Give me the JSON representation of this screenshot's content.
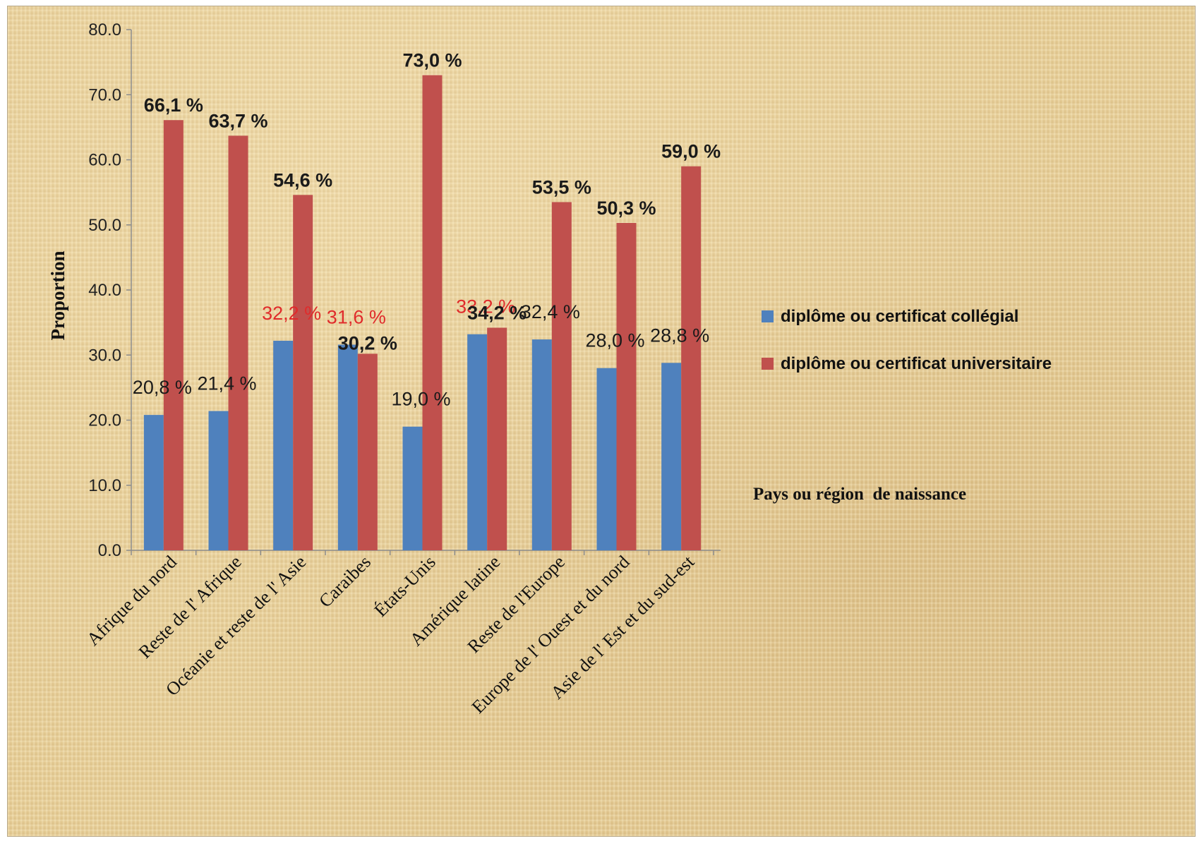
{
  "chart_data": {
    "type": "bar",
    "title": "",
    "xlabel": "Pays ou région  de naissance",
    "ylabel": "Proportion",
    "ylim": [
      0,
      80
    ],
    "yticks": [
      "0.0",
      "10.0",
      "20.0",
      "30.0",
      "40.0",
      "50.0",
      "60.0",
      "70.0",
      "80.0"
    ],
    "grid": false,
    "legend_position": "right",
    "categories": [
      "Afrique du nord",
      "Reste de l' Afrique",
      "Océanie et reste de l' Asie",
      "Caraibes",
      "États-Unis",
      "Amérique latine",
      "Reste de l'Europe",
      "Europe de l' Ouest et du nord",
      "Asie de l' Est et du sud-est"
    ],
    "series": [
      {
        "name": "diplôme ou certificat collégial",
        "color": "#4f81bd",
        "values": [
          20.8,
          21.4,
          32.2,
          31.6,
          19.0,
          33.2,
          32.4,
          28.0,
          28.8
        ],
        "labels": [
          "20,8 %",
          "21,4 %",
          "32,2 %",
          "31,6 %",
          "19,0 %",
          "33,2 %",
          "32,4 %",
          "28,0 %",
          "28,8 %"
        ]
      },
      {
        "name": "diplôme ou certificat universitaire",
        "color": "#c0504d",
        "values": [
          66.1,
          63.7,
          54.6,
          30.2,
          73.0,
          34.2,
          53.5,
          50.3,
          59.0
        ],
        "labels": [
          "66,1 %",
          "63,7 %",
          "54,6 %",
          "30,2 %",
          "73,0 %",
          "34,2 %",
          "53,5 %",
          "50,3 %",
          "59,0 %"
        ]
      }
    ],
    "label_colors": {
      "default": "#1a1a1a",
      "highlight": "#e02b2b"
    }
  }
}
